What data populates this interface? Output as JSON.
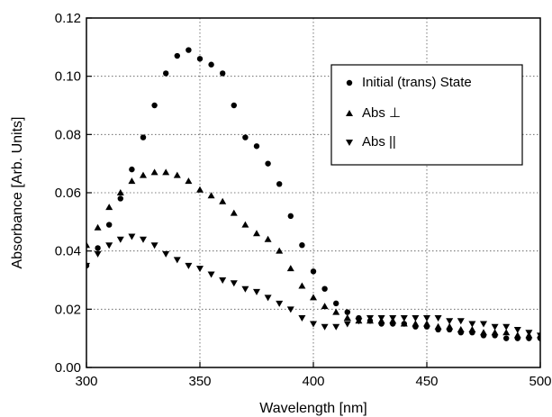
{
  "chart_data": {
    "type": "scatter",
    "xlabel": "Wavelength [nm]",
    "ylabel": "Absorbance [Arb. Units]",
    "xlim": [
      300,
      500
    ],
    "ylim": [
      0.0,
      0.12
    ],
    "x_ticks": [
      300,
      350,
      400,
      450,
      500
    ],
    "y_ticks": [
      "0.00",
      "0.02",
      "0.04",
      "0.06",
      "0.08",
      "0.10",
      "0.12"
    ],
    "grid": "dotted",
    "legend_position": "top-right",
    "series": [
      {
        "name": "Initial (trans) State",
        "marker": "circle",
        "color": "#000000",
        "x": [
          300,
          305,
          310,
          315,
          320,
          325,
          330,
          335,
          340,
          345,
          350,
          355,
          360,
          365,
          370,
          375,
          380,
          385,
          390,
          395,
          400,
          405,
          410,
          415,
          420,
          425,
          430,
          435,
          440,
          445,
          450,
          455,
          460,
          465,
          470,
          475,
          480,
          485,
          490,
          495,
          500
        ],
        "y": [
          0.035,
          0.041,
          0.049,
          0.058,
          0.068,
          0.079,
          0.09,
          0.101,
          0.107,
          0.109,
          0.106,
          0.104,
          0.101,
          0.09,
          0.079,
          0.076,
          0.07,
          0.063,
          0.052,
          0.042,
          0.033,
          0.027,
          0.022,
          0.019,
          0.017,
          0.016,
          0.015,
          0.015,
          0.015,
          0.014,
          0.014,
          0.013,
          0.013,
          0.012,
          0.012,
          0.011,
          0.011,
          0.01,
          0.01,
          0.01,
          0.01
        ]
      },
      {
        "name": "Abs ⊥",
        "marker": "triangle-up",
        "color": "#000000",
        "x": [
          300,
          305,
          310,
          315,
          320,
          325,
          330,
          335,
          340,
          345,
          350,
          355,
          360,
          365,
          370,
          375,
          380,
          385,
          390,
          395,
          400,
          405,
          410,
          415,
          420,
          425,
          430,
          435,
          440,
          445,
          450,
          455,
          460,
          465,
          470,
          475,
          480,
          485,
          490,
          495,
          500
        ],
        "y": [
          0.042,
          0.048,
          0.055,
          0.06,
          0.064,
          0.066,
          0.067,
          0.067,
          0.066,
          0.064,
          0.061,
          0.059,
          0.057,
          0.053,
          0.049,
          0.046,
          0.044,
          0.04,
          0.034,
          0.028,
          0.024,
          0.021,
          0.019,
          0.017,
          0.016,
          0.016,
          0.016,
          0.016,
          0.015,
          0.015,
          0.015,
          0.014,
          0.014,
          0.013,
          0.013,
          0.012,
          0.012,
          0.012,
          0.011,
          0.011,
          0.011
        ]
      },
      {
        "name": "Abs ||",
        "marker": "triangle-down",
        "color": "#000000",
        "x": [
          300,
          305,
          310,
          315,
          320,
          325,
          330,
          335,
          340,
          345,
          350,
          355,
          360,
          365,
          370,
          375,
          380,
          385,
          390,
          395,
          400,
          405,
          410,
          415,
          420,
          425,
          430,
          435,
          440,
          445,
          450,
          455,
          460,
          465,
          470,
          475,
          480,
          485,
          490,
          495,
          500
        ],
        "y": [
          0.035,
          0.039,
          0.042,
          0.044,
          0.045,
          0.044,
          0.042,
          0.039,
          0.037,
          0.035,
          0.034,
          0.032,
          0.03,
          0.029,
          0.027,
          0.026,
          0.024,
          0.022,
          0.02,
          0.017,
          0.015,
          0.014,
          0.014,
          0.015,
          0.016,
          0.017,
          0.017,
          0.017,
          0.017,
          0.017,
          0.017,
          0.017,
          0.016,
          0.016,
          0.015,
          0.015,
          0.014,
          0.014,
          0.013,
          0.012,
          0.011
        ]
      }
    ]
  }
}
